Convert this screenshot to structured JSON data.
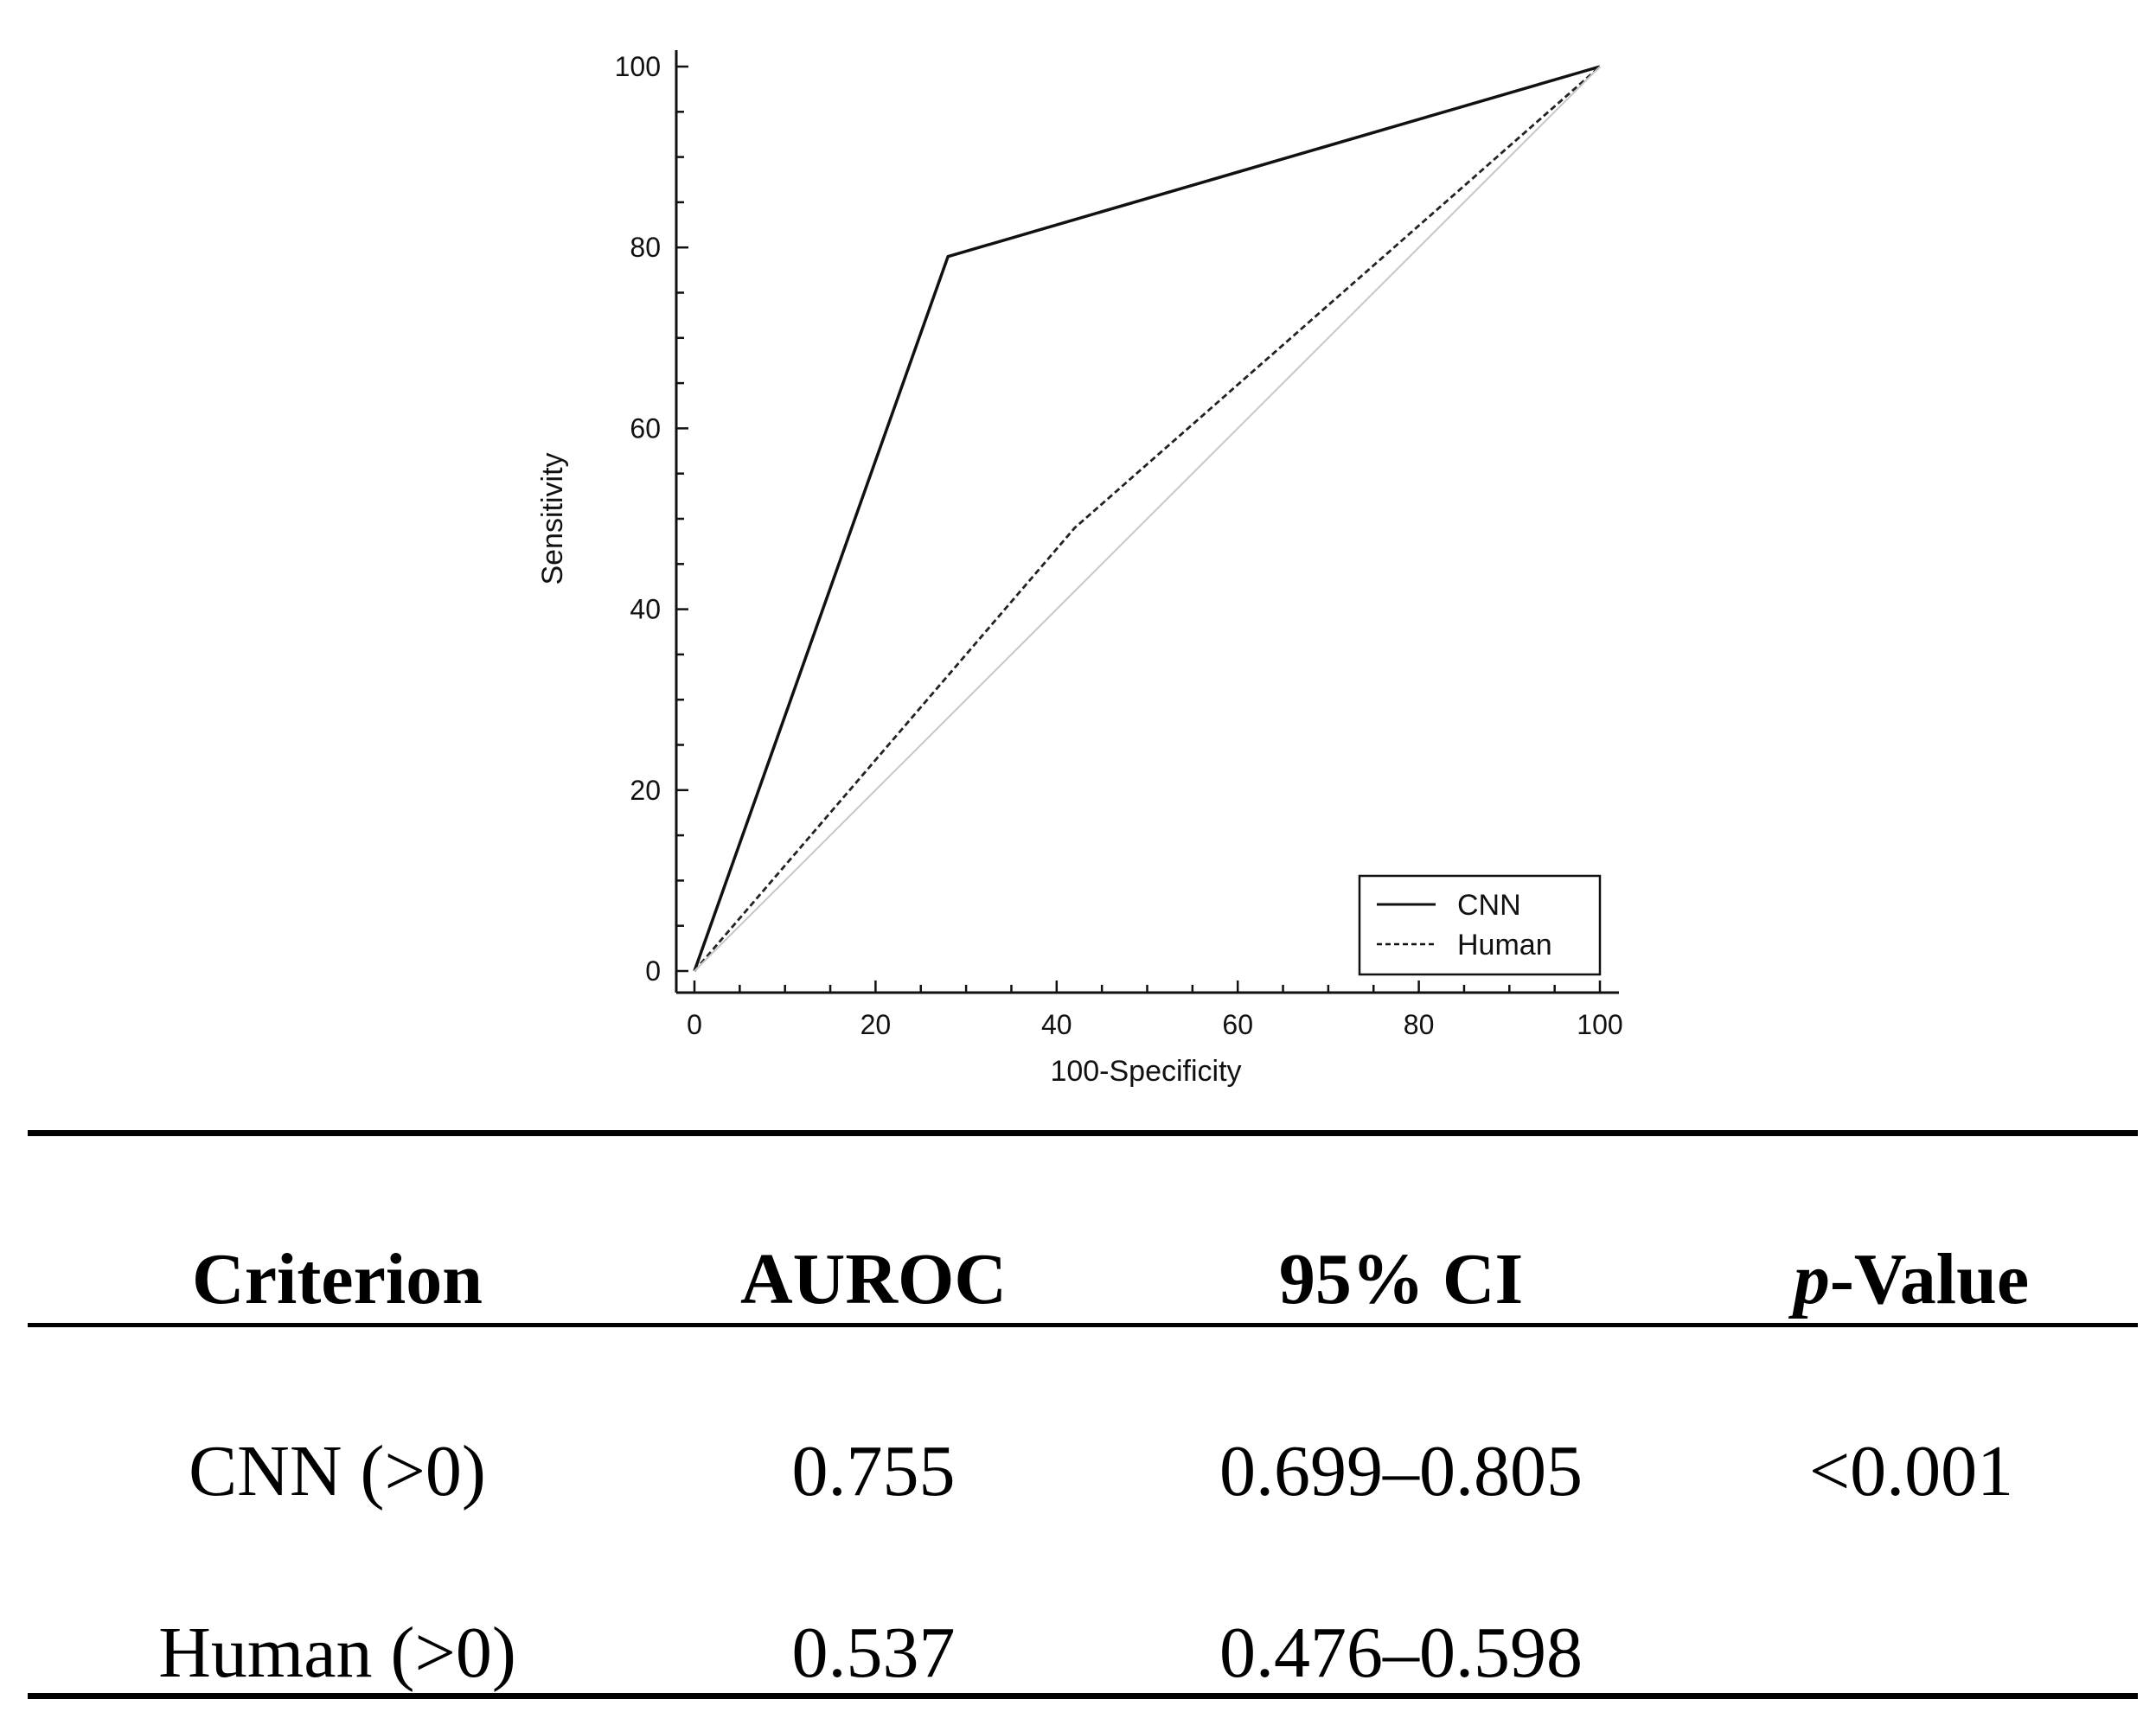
{
  "chart_data": {
    "type": "line",
    "xlabel": "100-Specificity",
    "ylabel": "Sensitivity",
    "xlim": [
      0,
      100
    ],
    "ylim": [
      0,
      100
    ],
    "xticks": [
      0,
      20,
      40,
      60,
      80,
      100
    ],
    "yticks": [
      0,
      20,
      40,
      60,
      80,
      100
    ],
    "grid": false,
    "legend_position": "bottom-right",
    "series": [
      {
        "name": "CNN",
        "style": "solid",
        "x": [
          0,
          28,
          100
        ],
        "y": [
          0,
          79,
          100
        ]
      },
      {
        "name": "Human",
        "style": "dashed",
        "x": [
          0,
          42,
          100
        ],
        "y": [
          0,
          49,
          100
        ]
      },
      {
        "name": "reference",
        "style": "diagonal",
        "x": [
          0,
          100
        ],
        "y": [
          0,
          100
        ]
      }
    ]
  },
  "table": {
    "headers": [
      "Criterion",
      "AUROC",
      "95% CI",
      "-Value"
    ],
    "header_p": "p",
    "rows": [
      [
        "CNN (>0)",
        "0.755",
        "0.699–0.805",
        "<0.001"
      ],
      [
        "Human (>0)",
        "0.537",
        "0.476–0.598",
        ""
      ]
    ]
  },
  "colors": {
    "line": "#111111",
    "reference": "#c8c8c8"
  }
}
